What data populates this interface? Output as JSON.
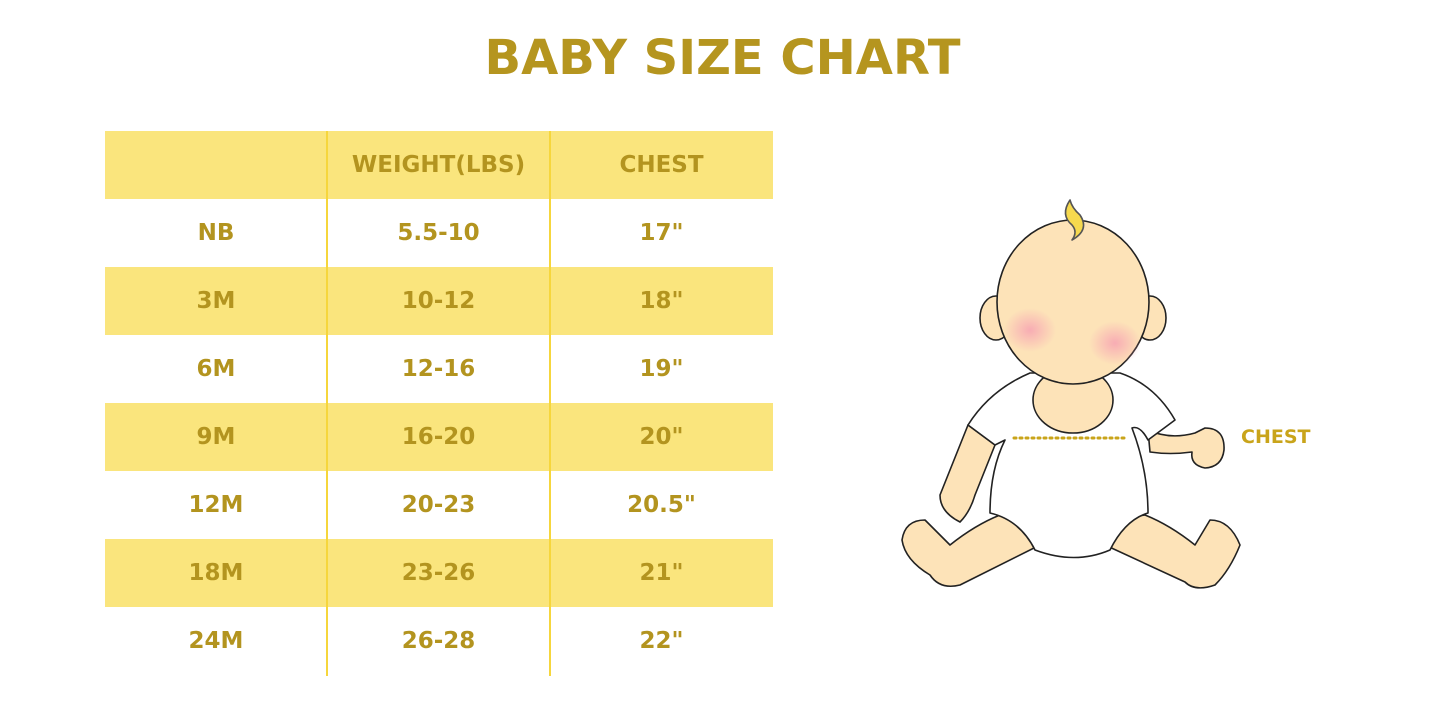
{
  "title": "BABY SIZE CHART",
  "table": {
    "headers": [
      "",
      "WEIGHT(LBS)",
      "CHEST"
    ],
    "rows": [
      [
        "NB",
        "5.5-10",
        "17\""
      ],
      [
        "3M",
        "10-12",
        "18\""
      ],
      [
        "6M",
        "12-16",
        "19\""
      ],
      [
        "9M",
        "16-20",
        "20\""
      ],
      [
        "12M",
        "20-23",
        "20.5\""
      ],
      [
        "18M",
        "23-26",
        "21\""
      ],
      [
        "24M",
        "26-28",
        "22\""
      ]
    ]
  },
  "illustration": {
    "chest_label": "CHEST"
  },
  "colors": {
    "text": "#b3941f",
    "band": "#fae57d",
    "divider": "#f6d63c",
    "skin": "#fde3b8"
  }
}
